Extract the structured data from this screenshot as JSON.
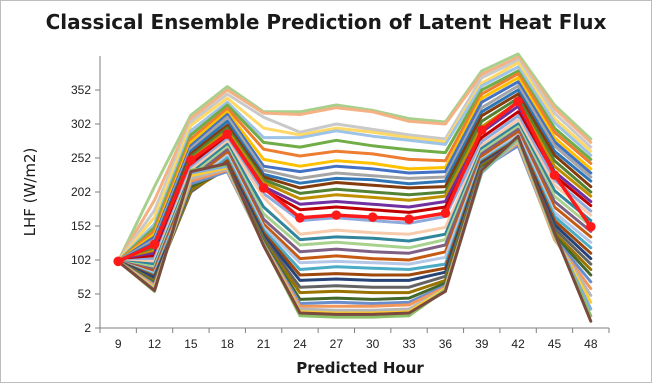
{
  "chart_data": {
    "type": "line",
    "title": "Classical Ensemble Prediction of Latent Heat Flux",
    "xlabel": "Predicted Hour",
    "ylabel": "LHF (W/m2)",
    "x": [
      9,
      12,
      15,
      18,
      21,
      24,
      27,
      30,
      33,
      36,
      39,
      42,
      45,
      48
    ],
    "x_tick_labels": [
      "9",
      "12",
      "15",
      "18",
      "21",
      "24",
      "27",
      "30",
      "33",
      "36",
      "39",
      "42",
      "45",
      "48"
    ],
    "y_ticks": [
      2,
      52,
      102,
      152,
      202,
      252,
      302,
      352
    ],
    "y_tick_labels": [
      "2",
      "52",
      "102",
      "152",
      "202",
      "252",
      "302",
      "352"
    ],
    "ylim": [
      2,
      402
    ],
    "grid": false,
    "legend": "none",
    "colors": {
      "mean_line": "#ff1a1a",
      "axis": "#7f7f7f",
      "members": [
        "#a8d08d",
        "#f4b183",
        "#c9c9c9",
        "#ffd966",
        "#9dc3e6",
        "#70ad47",
        "#ed7d31",
        "#ffc000",
        "#4472c4",
        "#a5a5a5",
        "#2e75b6",
        "#843c0c",
        "#548235",
        "#bf8f00",
        "#7030a0",
        "#c00000",
        "#8faadc",
        "#f8cbad",
        "#31859c",
        "#a9d18e",
        "#7f6084",
        "#c55a11",
        "#b4c7e7",
        "#4bacc6",
        "#9e480e",
        "#264478",
        "#636363",
        "#997300",
        "#43682b",
        "#698ed0",
        "#f1975a",
        "#b7b7b7",
        "#ffcd33",
        "#7cafdd",
        "#8cc168",
        "#7b4a3f"
      ]
    },
    "mean": {
      "values": [
        100,
        125,
        249,
        287,
        208,
        164,
        168,
        165,
        162,
        171,
        293,
        335,
        227,
        151
      ]
    },
    "members": [
      [
        100,
        210,
        315,
        357,
        320,
        320,
        330,
        322,
        310,
        305,
        380,
        405,
        330,
        280
      ],
      [
        100,
        190,
        310,
        352,
        318,
        316,
        326,
        320,
        306,
        302,
        375,
        400,
        325,
        275
      ],
      [
        100,
        175,
        305,
        346,
        312,
        290,
        302,
        294,
        286,
        280,
        370,
        396,
        318,
        268
      ],
      [
        100,
        165,
        300,
        340,
        296,
        286,
        296,
        290,
        282,
        276,
        362,
        392,
        310,
        262
      ],
      [
        100,
        155,
        292,
        334,
        282,
        282,
        292,
        284,
        278,
        272,
        358,
        386,
        304,
        256
      ],
      [
        100,
        150,
        286,
        330,
        275,
        268,
        278,
        270,
        264,
        260,
        352,
        380,
        296,
        250
      ],
      [
        100,
        145,
        280,
        325,
        265,
        255,
        262,
        258,
        250,
        248,
        346,
        376,
        290,
        244
      ],
      [
        100,
        140,
        275,
        320,
        250,
        240,
        248,
        244,
        236,
        238,
        340,
        370,
        282,
        236
      ],
      [
        100,
        136,
        270,
        316,
        240,
        232,
        240,
        236,
        230,
        232,
        334,
        364,
        276,
        230
      ],
      [
        100,
        132,
        266,
        312,
        234,
        222,
        230,
        226,
        222,
        224,
        326,
        358,
        270,
        224
      ],
      [
        100,
        128,
        262,
        306,
        228,
        215,
        222,
        220,
        214,
        218,
        320,
        352,
        262,
        218
      ],
      [
        100,
        124,
        258,
        300,
        224,
        208,
        216,
        212,
        208,
        210,
        314,
        346,
        256,
        210
      ],
      [
        100,
        120,
        254,
        296,
        220,
        200,
        206,
        202,
        198,
        202,
        306,
        340,
        248,
        202
      ],
      [
        100,
        116,
        250,
        292,
        216,
        192,
        198,
        194,
        190,
        196,
        298,
        334,
        240,
        196
      ],
      [
        100,
        112,
        246,
        288,
        210,
        184,
        188,
        184,
        180,
        188,
        290,
        328,
        232,
        188
      ],
      [
        100,
        108,
        242,
        284,
        206,
        176,
        180,
        176,
        172,
        180,
        282,
        320,
        226,
        182
      ],
      [
        100,
        104,
        238,
        280,
        200,
        160,
        164,
        160,
        156,
        166,
        276,
        314,
        220,
        174
      ],
      [
        100,
        100,
        234,
        276,
        194,
        140,
        146,
        142,
        140,
        150,
        270,
        308,
        212,
        168
      ],
      [
        100,
        96,
        230,
        272,
        180,
        132,
        136,
        134,
        130,
        140,
        266,
        302,
        204,
        160
      ],
      [
        100,
        92,
        226,
        268,
        170,
        124,
        128,
        124,
        120,
        132,
        262,
        298,
        196,
        152
      ],
      [
        100,
        88,
        222,
        264,
        162,
        114,
        118,
        114,
        112,
        124,
        258,
        294,
        188,
        144
      ],
      [
        100,
        85,
        218,
        260,
        155,
        104,
        108,
        104,
        102,
        114,
        254,
        290,
        180,
        136
      ],
      [
        100,
        82,
        214,
        256,
        150,
        98,
        100,
        98,
        96,
        106,
        250,
        286,
        172,
        128
      ],
      [
        100,
        80,
        210,
        252,
        146,
        88,
        92,
        90,
        88,
        96,
        248,
        282,
        166,
        120
      ],
      [
        100,
        78,
        206,
        248,
        142,
        80,
        82,
        80,
        80,
        90,
        246,
        280,
        160,
        112
      ],
      [
        100,
        76,
        204,
        244,
        138,
        72,
        74,
        72,
        72,
        84,
        244,
        278,
        154,
        104
      ],
      [
        100,
        72,
        202,
        240,
        134,
        62,
        64,
        62,
        62,
        78,
        242,
        276,
        148,
        96
      ],
      [
        100,
        70,
        205,
        236,
        130,
        54,
        56,
        54,
        54,
        72,
        240,
        274,
        142,
        88
      ],
      [
        100,
        68,
        210,
        234,
        128,
        44,
        46,
        44,
        46,
        68,
        238,
        272,
        138,
        80
      ],
      [
        100,
        66,
        214,
        232,
        126,
        38,
        40,
        38,
        40,
        64,
        236,
        270,
        134,
        70
      ],
      [
        100,
        64,
        218,
        234,
        125,
        34,
        34,
        34,
        36,
        62,
        234,
        274,
        132,
        60
      ],
      [
        100,
        62,
        222,
        236,
        124,
        30,
        28,
        28,
        30,
        60,
        232,
        276,
        134,
        50
      ],
      [
        100,
        60,
        226,
        238,
        124,
        26,
        24,
        24,
        26,
        60,
        232,
        278,
        136,
        40
      ],
      [
        100,
        58,
        230,
        240,
        124,
        22,
        20,
        20,
        22,
        58,
        230,
        280,
        138,
        30
      ],
      [
        100,
        56,
        234,
        242,
        124,
        20,
        18,
        18,
        20,
        58,
        232,
        282,
        140,
        20
      ],
      [
        100,
        57,
        232,
        244,
        123,
        24,
        22,
        22,
        24,
        56,
        234,
        284,
        142,
        12
      ]
    ]
  }
}
